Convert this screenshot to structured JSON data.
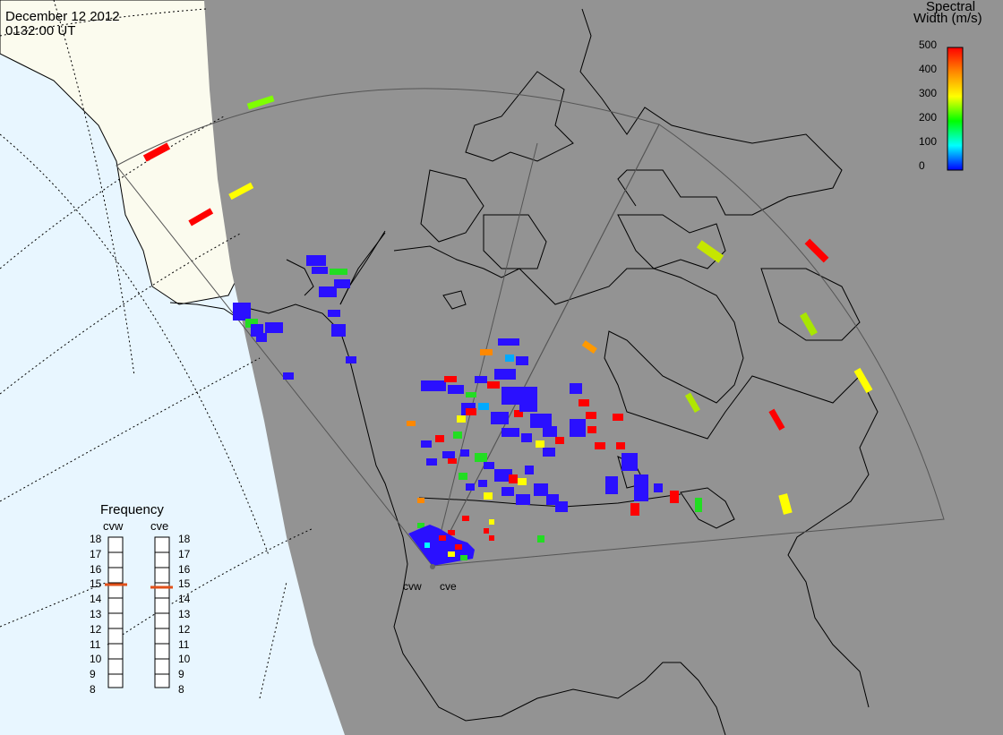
{
  "header": {
    "date": "December 12 2012",
    "time": "0132:00 UT"
  },
  "colorbar": {
    "title_line1": "Spectral",
    "title_line2": "Width (m/s)",
    "ticks": [
      "500",
      "400",
      "300",
      "200",
      "100",
      "0"
    ],
    "colors": [
      "#ff0000",
      "#ff8800",
      "#ffff00",
      "#00ff00",
      "#00ffff",
      "#0000ff"
    ]
  },
  "frequency_panel": {
    "title": "Frequency",
    "radars": [
      {
        "name": "cvw",
        "selected_mhz": 15
      },
      {
        "name": "cve",
        "selected_mhz": 15
      }
    ],
    "scale": [
      "18",
      "17",
      "16",
      "15",
      "14",
      "13",
      "12",
      "11",
      "10",
      "9",
      "8"
    ]
  },
  "radar_sites": [
    "cvw",
    "cve"
  ],
  "map_colors": {
    "night": "#939393",
    "day_ocean": "#e8f6ff",
    "day_land": "#fbfbee",
    "fov_line": "#555555"
  }
}
